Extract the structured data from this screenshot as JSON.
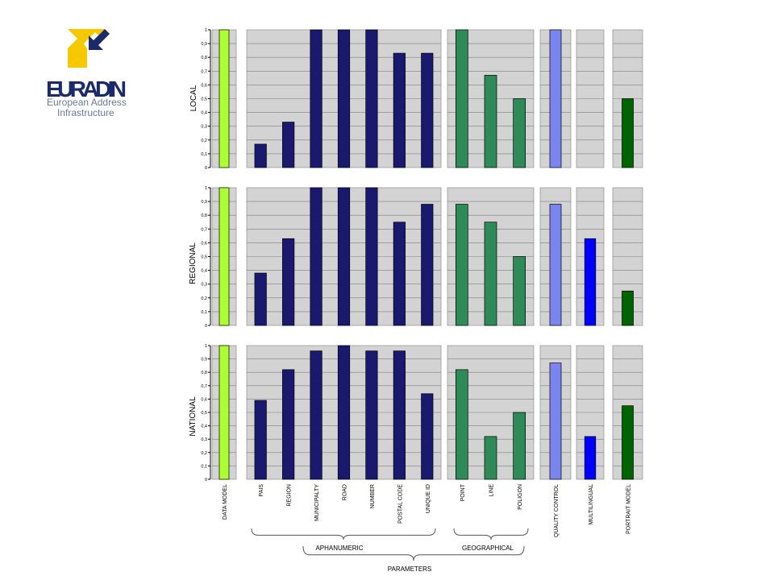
{
  "logo": {
    "name": "EURADIN",
    "tagline_1": "European Address",
    "tagline_2": "Infrastructure",
    "colors": {
      "yellow": "#f5c800",
      "navy": "#1b2a6b",
      "grey": "#6b7a99"
    }
  },
  "colors": {
    "data_model": "#adff2f",
    "aphanumeric": "#191970",
    "geographical": "#2e8b57",
    "quality_control": "#7b85f0",
    "multilingual": "#0000ff",
    "portrait_model": "#006400",
    "plot_bg": "#d3d3d3",
    "grid": "#808080"
  },
  "chart_data": {
    "type": "bar",
    "ylim": [
      0,
      1
    ],
    "yticks": [
      "0",
      "0,1",
      "0,2",
      "0,3",
      "0,4",
      "0,5",
      "0,6",
      "0,7",
      "0,8",
      "0,9",
      "1"
    ],
    "groups": [
      {
        "categories": [
          "DATA MODEL"
        ],
        "color_key": "data_model"
      },
      {
        "categories": [
          "PAIS",
          "REGION",
          "MUNICIPALTY",
          "ROAD",
          "NUMBER",
          "POSTAL CODE",
          "UNIQUE ID"
        ],
        "color_key": "aphanumeric"
      },
      {
        "categories": [
          "POINT",
          "LINE",
          "POLIGON"
        ],
        "color_key": "geographical"
      },
      {
        "categories": [
          "QUALITY CONTROL"
        ],
        "color_key": "quality_control"
      },
      {
        "categories": [
          "MULTILINGUAL"
        ],
        "color_key": "multilingual"
      },
      {
        "categories": [
          "PORTRAIT MODEL"
        ],
        "color_key": "portrait_model"
      }
    ],
    "series": [
      {
        "name": "LOCAL",
        "values": [
          [
            1
          ],
          [
            0.17,
            0.33,
            1,
            1,
            1,
            0.83,
            0.83
          ],
          [
            1,
            0.67,
            0.5
          ],
          [
            1
          ],
          [
            0
          ],
          [
            0.5
          ]
        ]
      },
      {
        "name": "REGIONAL",
        "values": [
          [
            1
          ],
          [
            0.38,
            0.63,
            1,
            1,
            1,
            0.75,
            0.88
          ],
          [
            0.88,
            0.75,
            0.5
          ],
          [
            0.88
          ],
          [
            0.63
          ],
          [
            0.25
          ]
        ]
      },
      {
        "name": "NATIONAL",
        "values": [
          [
            1
          ],
          [
            0.59,
            0.82,
            0.96,
            1,
            0.96,
            0.96,
            0.64
          ],
          [
            0.82,
            0.32,
            0.5
          ],
          [
            0.87
          ],
          [
            0.32
          ],
          [
            0.55
          ]
        ]
      }
    ],
    "brace_labels": {
      "aphanumeric": "APHANUMERIC",
      "geographical": "GEOGRAPHICAL",
      "parameters": "PARAMETERS"
    },
    "grid": true,
    "legend": "none"
  }
}
